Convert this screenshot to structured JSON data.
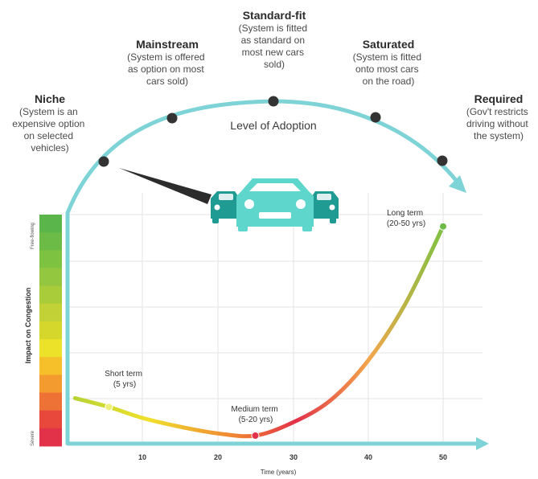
{
  "stages": [
    {
      "title": "Niche",
      "desc": [
        "(System is an",
        "expensive option",
        "on selected",
        "vehicles)"
      ]
    },
    {
      "title": "Mainstream",
      "desc": [
        "(System is offered",
        "as option on most",
        "cars sold)"
      ]
    },
    {
      "title": "Standard-fit",
      "desc": [
        "(System is fitted",
        "as standard on",
        "most new cars",
        "sold)"
      ]
    },
    {
      "title": "Saturated",
      "desc": [
        "(System is fitted",
        "onto most cars",
        "on the road)"
      ]
    },
    {
      "title": "Required",
      "desc": [
        "(Gov't restricts",
        "driving without",
        "the system)"
      ]
    }
  ],
  "arc_label": "Level of Adoption",
  "terms": [
    {
      "label": "Short term",
      "sub": "(5 yrs)",
      "x": 5.5,
      "y": 0.13
    },
    {
      "label": "Medium term",
      "sub": "(5-20 yrs)",
      "x": 25,
      "y": 0.0
    },
    {
      "label": "Long term",
      "sub": "(20-50 yrs)",
      "x": 50,
      "y": 0.95
    }
  ],
  "x_ticks": [
    "10",
    "20",
    "30",
    "40",
    "50"
  ],
  "x_axis_title": "Time (years)",
  "y_axis_title": "Impact on Congestion",
  "y_top_label": "Free-flowing",
  "y_bottom_label": "Severe",
  "colors": {
    "arc": "#7ed3d6",
    "axis": "#7ed3d6",
    "car_main": "#5fd6cc",
    "car_side": "#1f9b93",
    "dot": "#333333"
  },
  "scale_colors": [
    "#5ab54b",
    "#6bbb46",
    "#7ec242",
    "#93c73f",
    "#a9cc3b",
    "#c2d236",
    "#d6d72d",
    "#ece22a",
    "#f6c02a",
    "#f49b2f",
    "#ee7236",
    "#e8473b",
    "#e23249"
  ],
  "chart_data": {
    "type": "line",
    "x": [
      1,
      5.5,
      10,
      15,
      20,
      25,
      30,
      35,
      40,
      45,
      50
    ],
    "y": [
      0.17,
      0.13,
      0.08,
      0.04,
      0.01,
      0.0,
      0.06,
      0.16,
      0.34,
      0.6,
      0.95
    ],
    "xlabel": "Time (years)",
    "ylabel": "Impact on Congestion",
    "xlim": [
      0,
      57
    ],
    "xticks": [
      10,
      20,
      30,
      40,
      50
    ]
  }
}
